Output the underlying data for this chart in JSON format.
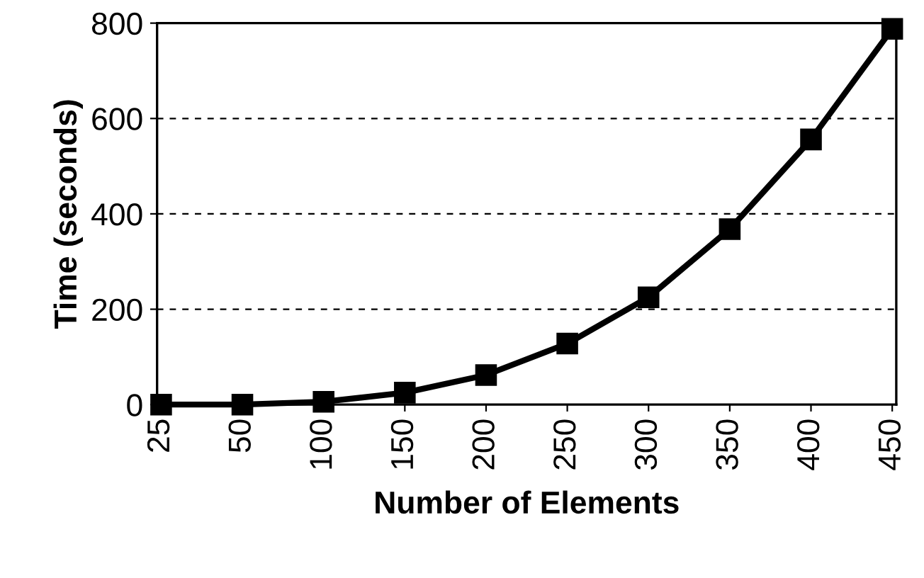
{
  "chart_data": {
    "type": "line",
    "xlabel": "Number of Elements",
    "ylabel": "Time (seconds)",
    "categories": [
      "25",
      "50",
      "100",
      "150",
      "200",
      "250",
      "300",
      "350",
      "400",
      "450"
    ],
    "series": [
      {
        "color": "#000000",
        "values": [
          0,
          0,
          6,
          25,
          62,
          128,
          225,
          368,
          556,
          788
        ]
      }
    ],
    "ylim": [
      0,
      800
    ],
    "yticks": [
      0,
      200,
      400,
      600,
      800
    ],
    "grid": "y",
    "marker": "square",
    "line_style": "solid",
    "legend": false
  }
}
